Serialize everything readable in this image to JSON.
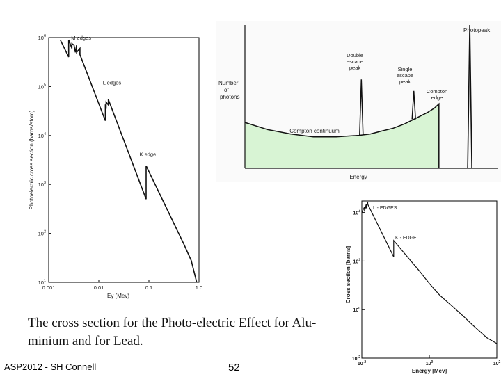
{
  "caption": {
    "line1": "The cross section for the Photo-electric Effect for Alu-",
    "line2": "minium and for Lead."
  },
  "footer": {
    "author": "ASP2012 - SH Connell",
    "page": "52"
  },
  "chart_data": [
    {
      "type": "line",
      "title": "",
      "xlabel": "Eγ (Mev)",
      "ylabel": "Photoelectric cross section (barns/atom)",
      "xscale": "log",
      "yscale": "log",
      "xlim": [
        0.001,
        1.0
      ],
      "ylim": [
        10,
        1000000
      ],
      "xticks": [
        "0.001",
        "0.01",
        "0.1",
        "1.0"
      ],
      "yticks": [
        "10^6",
        "10^5",
        "10^4",
        "10^3",
        "10^2",
        "10^1"
      ],
      "annotations": [
        "M edges",
        "L edges",
        "K edge"
      ],
      "series": [
        {
          "x": [
            0.0017,
            0.0025,
            0.0025,
            0.0029,
            0.0029,
            0.0032,
            0.0034,
            0.0036,
            0.0036,
            0.0042,
            0.0042,
            0.0041,
            0.0135,
            0.0135,
            0.014,
            0.014,
            0.0155,
            0.0155,
            0.016,
            0.088,
            0.088,
            0.5,
            0.7,
            0.9
          ],
          "y": [
            900000,
            400000,
            900000,
            600000,
            750000,
            700000,
            500000,
            700000,
            500000,
            600000,
            480000,
            480000,
            20000,
            43000,
            35000,
            48000,
            42000,
            55000,
            50000,
            500,
            2400,
            60,
            28,
            10
          ]
        }
      ]
    },
    {
      "type": "area",
      "title": "",
      "xlabel": "Energy",
      "ylabel": "Number of photons",
      "annotations": [
        "Photopeak",
        "Double escape peak",
        "Single escape peak",
        "Compton edge",
        "Compton continuum"
      ],
      "fill_color": "#d8f4d4",
      "continuum": {
        "x": [
          0.0,
          0.1,
          0.2,
          0.3,
          0.4,
          0.5,
          0.55,
          0.6,
          0.65,
          0.7,
          0.75,
          0.8,
          0.83,
          0.85,
          0.85
        ],
        "y": [
          0.32,
          0.27,
          0.24,
          0.22,
          0.22,
          0.23,
          0.24,
          0.26,
          0.28,
          0.31,
          0.35,
          0.39,
          0.42,
          0.45,
          0.0
        ]
      },
      "peaks": [
        {
          "name": "Double escape peak",
          "x": 0.51,
          "y": 0.62
        },
        {
          "name": "Single escape peak",
          "x": 0.74,
          "y": 0.54
        },
        {
          "name": "Photopeak",
          "x": 0.985,
          "y": 1.0
        }
      ]
    },
    {
      "type": "line",
      "title": "",
      "xlabel": "Energy [Mev]",
      "ylabel": "Cross section [barns]",
      "xscale": "log",
      "yscale": "log",
      "xlim": [
        0.01,
        100
      ],
      "ylim": [
        0.01,
        30000
      ],
      "xticks": [
        "10^-2",
        "10^0",
        "10^2"
      ],
      "yticks": [
        "10^4",
        "10^2",
        "10^0",
        "10^-2"
      ],
      "annotations": [
        "L - EDGES",
        "K - EDGE"
      ],
      "series": [
        {
          "x": [
            0.01,
            0.012,
            0.012,
            0.0135,
            0.0135,
            0.015,
            0.015,
            0.088,
            0.088,
            0.2,
            0.5,
            1,
            2,
            5,
            10,
            20,
            50,
            100
          ],
          "y": [
            10000,
            17000,
            11000,
            22000,
            15000,
            28000,
            22000,
            150,
            700,
            180,
            40,
            12,
            4,
            1.3,
            0.55,
            0.22,
            0.07,
            0.04
          ]
        }
      ]
    }
  ]
}
